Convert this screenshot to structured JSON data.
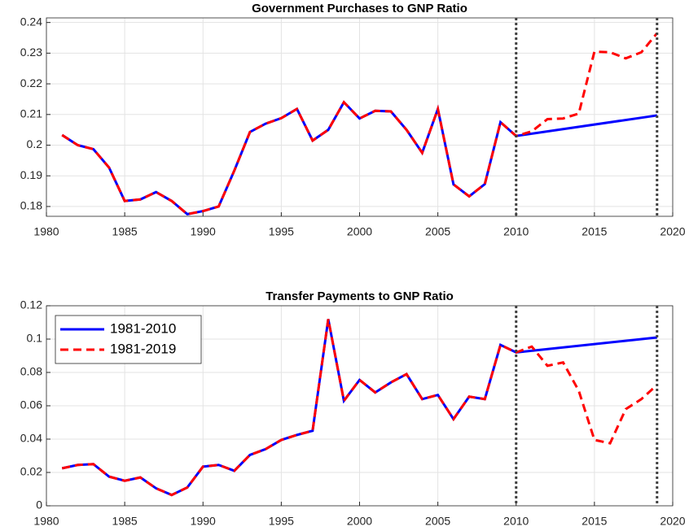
{
  "chart_data": [
    {
      "type": "line",
      "title": "Government Purchases to GNP Ratio",
      "xlim": [
        1980,
        2020
      ],
      "xticks": [
        1980,
        1985,
        1990,
        1995,
        2000,
        2005,
        2010,
        2015,
        2020
      ],
      "ylim": [
        0.1768,
        0.2415
      ],
      "yticks": [
        0.18,
        0.19,
        0.2,
        0.21,
        0.22,
        0.23,
        0.24
      ],
      "grid": true,
      "vlines": [
        2010,
        2019
      ],
      "series": [
        {
          "name": "1981-2010",
          "color": "#0000ff",
          "dash": "solid",
          "x": [
            1981,
            1982,
            1983,
            1984,
            1985,
            1986,
            1987,
            1988,
            1989,
            1990,
            1991,
            1992,
            1993,
            1994,
            1995,
            1996,
            1997,
            1998,
            1999,
            2000,
            2001,
            2002,
            2003,
            2004,
            2005,
            2006,
            2007,
            2008,
            2009,
            2010,
            2019
          ],
          "values": [
            0.2033,
            0.2,
            0.1987,
            0.1927,
            0.1818,
            0.1823,
            0.1847,
            0.1818,
            0.1775,
            0.1785,
            0.18,
            0.1917,
            0.2043,
            0.207,
            0.2088,
            0.2118,
            0.2015,
            0.205,
            0.214,
            0.2087,
            0.2112,
            0.211,
            0.205,
            0.1975,
            0.2118,
            0.1872,
            0.1833,
            0.1873,
            0.2075,
            0.203,
            0.2097
          ]
        },
        {
          "name": "1981-2019",
          "color": "#ff0000",
          "dash": "dashed",
          "x": [
            1981,
            1982,
            1983,
            1984,
            1985,
            1986,
            1987,
            1988,
            1989,
            1990,
            1991,
            1992,
            1993,
            1994,
            1995,
            1996,
            1997,
            1998,
            1999,
            2000,
            2001,
            2002,
            2003,
            2004,
            2005,
            2006,
            2007,
            2008,
            2009,
            2010,
            2011,
            2012,
            2013,
            2014,
            2015,
            2016,
            2017,
            2018,
            2019
          ],
          "values": [
            0.2033,
            0.2,
            0.1987,
            0.1927,
            0.1818,
            0.1823,
            0.1847,
            0.1818,
            0.1775,
            0.1785,
            0.18,
            0.1917,
            0.2043,
            0.207,
            0.2088,
            0.2118,
            0.2015,
            0.205,
            0.214,
            0.2087,
            0.2112,
            0.211,
            0.205,
            0.1975,
            0.2118,
            0.1872,
            0.1833,
            0.1873,
            0.2075,
            0.203,
            0.2045,
            0.2085,
            0.2087,
            0.2103,
            0.2305,
            0.2303,
            0.2283,
            0.2303,
            0.2365
          ]
        }
      ]
    },
    {
      "type": "line",
      "title": "Transfer Payments to GNP Ratio",
      "xlim": [
        1980,
        2020
      ],
      "xticks": [
        1980,
        1985,
        1990,
        1995,
        2000,
        2005,
        2010,
        2015,
        2020
      ],
      "ylim": [
        0,
        0.12
      ],
      "yticks": [
        0,
        0.02,
        0.04,
        0.06,
        0.08,
        0.1,
        0.12
      ],
      "grid": true,
      "vlines": [
        2010,
        2019
      ],
      "legend": "upper left",
      "series": [
        {
          "name": "1981-2010",
          "color": "#0000ff",
          "dash": "solid",
          "x": [
            1981,
            1982,
            1983,
            1984,
            1985,
            1986,
            1987,
            1988,
            1989,
            1990,
            1991,
            1992,
            1993,
            1994,
            1995,
            1996,
            1997,
            1998,
            1999,
            2000,
            2001,
            2002,
            2003,
            2004,
            2005,
            2006,
            2007,
            2008,
            2009,
            2010,
            2019
          ],
          "values": [
            0.0225,
            0.0245,
            0.025,
            0.0175,
            0.015,
            0.017,
            0.0105,
            0.0065,
            0.011,
            0.0235,
            0.0245,
            0.021,
            0.0305,
            0.034,
            0.0395,
            0.0425,
            0.045,
            0.112,
            0.063,
            0.0755,
            0.068,
            0.074,
            0.079,
            0.064,
            0.0665,
            0.052,
            0.0655,
            0.064,
            0.0965,
            0.092,
            0.101
          ]
        },
        {
          "name": "1981-2019",
          "color": "#ff0000",
          "dash": "dashed",
          "x": [
            1981,
            1982,
            1983,
            1984,
            1985,
            1986,
            1987,
            1988,
            1989,
            1990,
            1991,
            1992,
            1993,
            1994,
            1995,
            1996,
            1997,
            1998,
            1999,
            2000,
            2001,
            2002,
            2003,
            2004,
            2005,
            2006,
            2007,
            2008,
            2009,
            2010,
            2011,
            2012,
            2013,
            2014,
            2015,
            2016,
            2017,
            2018,
            2019
          ],
          "values": [
            0.0225,
            0.0245,
            0.025,
            0.0175,
            0.015,
            0.017,
            0.0105,
            0.0065,
            0.011,
            0.0235,
            0.0245,
            0.021,
            0.0305,
            0.034,
            0.0395,
            0.0425,
            0.045,
            0.112,
            0.063,
            0.0755,
            0.068,
            0.074,
            0.079,
            0.064,
            0.0665,
            0.052,
            0.0655,
            0.064,
            0.0965,
            0.092,
            0.0955,
            0.084,
            0.086,
            0.069,
            0.0395,
            0.0375,
            0.058,
            0.064,
            0.0725
          ]
        }
      ]
    }
  ]
}
